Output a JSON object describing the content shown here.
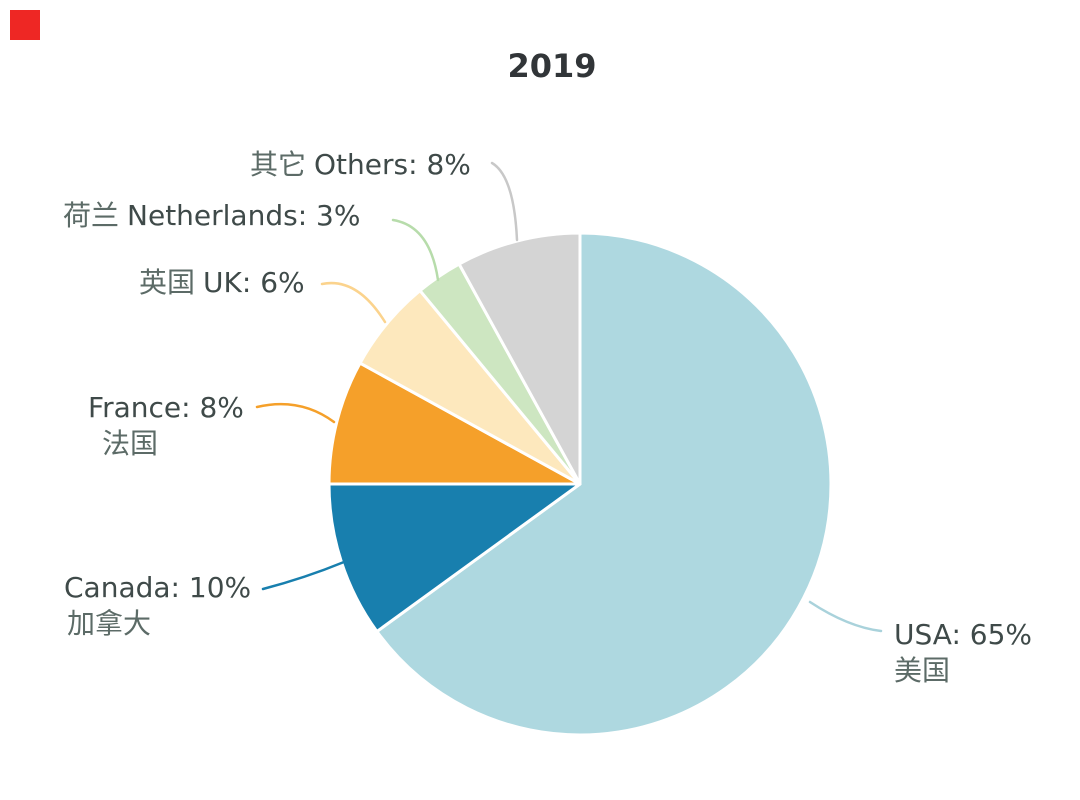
{
  "title": "2019",
  "marker": {
    "color": "#ee2724"
  },
  "chart_data": {
    "type": "pie",
    "title": "2019",
    "unit": "%",
    "start_angle_deg": 0,
    "direction": "clockwise",
    "legend_position": "none",
    "label_style": "leader-line callouts",
    "slices": [
      {
        "key": "usa",
        "name_en": "USA",
        "name_zh": "美国",
        "value": 65,
        "color": "#aed8e0",
        "leader_color": "#a9d2db"
      },
      {
        "key": "canada",
        "name_en": "Canada",
        "name_zh": "加拿大",
        "value": 10,
        "color": "#187fae",
        "leader_color": "#187fae"
      },
      {
        "key": "france",
        "name_en": "France",
        "name_zh": "法国",
        "value": 8,
        "color": "#f5a02a",
        "leader_color": "#f5a02a"
      },
      {
        "key": "uk",
        "name_en": "UK",
        "name_zh": "英国",
        "value": 6,
        "color": "#fde8bd",
        "leader_color": "#fbd38d"
      },
      {
        "key": "netherlands",
        "name_en": "Netherlands",
        "name_zh": "荷兰",
        "value": 3,
        "color": "#cde6c1",
        "leader_color": "#b7dcab"
      },
      {
        "key": "others",
        "name_en": "Others",
        "name_zh": "其它",
        "value": 8,
        "color": "#d4d4d4",
        "leader_color": "#c8c8c8"
      }
    ]
  },
  "labels": {
    "others": {
      "zh": "其它",
      "en": "Others: 8%"
    },
    "netherlands": {
      "zh": "荷兰",
      "en": "Netherlands: 3%"
    },
    "uk": {
      "zh": "英国",
      "en": "UK: 6%"
    },
    "france": {
      "line1": "France: 8%",
      "line2": "法国"
    },
    "canada": {
      "line1": "Canada: 10%",
      "line2": "加拿大"
    },
    "usa": {
      "line1": "USA: 65%",
      "line2": "美国"
    }
  }
}
